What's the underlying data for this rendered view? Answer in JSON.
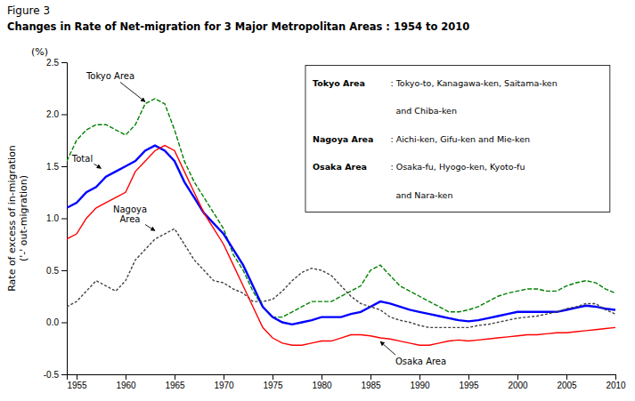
{
  "chart_data": {
    "type": "line",
    "title": "Figure 3",
    "subtitle": "Changes in Rate of Net-migration for 3 Major Metropolitan Areas : 1954 to 2010",
    "y_label": "Rate of excess of in-migration\n('-' out-migration)",
    "y_unit": "(%)",
    "x": [
      1954,
      1955,
      1956,
      1957,
      1958,
      1959,
      1960,
      1961,
      1962,
      1963,
      1964,
      1965,
      1966,
      1967,
      1968,
      1969,
      1970,
      1971,
      1972,
      1973,
      1974,
      1975,
      1976,
      1977,
      1978,
      1979,
      1980,
      1981,
      1982,
      1983,
      1984,
      1985,
      1986,
      1987,
      1988,
      1989,
      1990,
      1991,
      1992,
      1993,
      1994,
      1995,
      1996,
      1997,
      1998,
      1999,
      2000,
      2001,
      2002,
      2003,
      2004,
      2005,
      2006,
      2007,
      2008,
      2009,
      2010
    ],
    "xlim": [
      1954,
      2010
    ],
    "xticks": [
      1955,
      1960,
      1965,
      1970,
      1975,
      1980,
      1985,
      1990,
      1995,
      2000,
      2005,
      2010
    ],
    "ylim": [
      -0.5,
      2.5
    ],
    "yticks": [
      -0.5,
      {
        "value": 0.0,
        "label": "0.0"
      },
      0.5,
      {
        "value": 1.0,
        "label": "1.0"
      },
      1.5,
      {
        "value": 2.0,
        "label": "2.0"
      },
      2.5
    ],
    "series": [
      {
        "color": "#008000",
        "line_style": "dashed",
        "values": [
          1.55,
          1.75,
          1.85,
          1.9,
          1.9,
          1.85,
          1.8,
          1.9,
          2.1,
          2.15,
          2.1,
          1.85,
          1.55,
          1.35,
          1.2,
          1.05,
          0.9,
          0.65,
          0.5,
          0.3,
          0.15,
          0.05,
          0.05,
          0.1,
          0.15,
          0.2,
          0.2,
          0.2,
          0.25,
          0.3,
          0.35,
          0.5,
          0.55,
          0.45,
          0.35,
          0.3,
          0.25,
          0.2,
          0.15,
          0.1,
          0.1,
          0.12,
          0.15,
          0.2,
          0.25,
          0.28,
          0.3,
          0.32,
          0.32,
          0.3,
          0.3,
          0.35,
          0.38,
          0.4,
          0.38,
          0.32,
          0.28
        ]
      },
      {
        "color": "#0000FF",
        "line_style": "solid",
        "values": [
          1.1,
          1.15,
          1.25,
          1.3,
          1.4,
          1.45,
          1.5,
          1.55,
          1.65,
          1.7,
          1.65,
          1.55,
          1.35,
          1.2,
          1.05,
          0.95,
          0.85,
          0.7,
          0.55,
          0.35,
          0.15,
          0.05,
          0.0,
          -0.02,
          0.0,
          0.02,
          0.05,
          0.05,
          0.05,
          0.08,
          0.1,
          0.15,
          0.2,
          0.18,
          0.15,
          0.12,
          0.1,
          0.08,
          0.06,
          0.04,
          0.02,
          0.01,
          0.02,
          0.04,
          0.06,
          0.08,
          0.1,
          0.1,
          0.1,
          0.1,
          0.1,
          0.12,
          0.14,
          0.16,
          0.15,
          0.13,
          0.12
        ]
      },
      {
        "color": "#404040",
        "line_style": "dotted",
        "values": [
          0.15,
          0.2,
          0.3,
          0.4,
          0.35,
          0.3,
          0.4,
          0.6,
          0.7,
          0.8,
          0.85,
          0.9,
          0.75,
          0.6,
          0.5,
          0.4,
          0.38,
          0.32,
          0.28,
          0.2,
          0.2,
          0.22,
          0.3,
          0.4,
          0.48,
          0.52,
          0.5,
          0.45,
          0.35,
          0.25,
          0.18,
          0.15,
          0.12,
          0.05,
          0.02,
          0.0,
          -0.03,
          -0.05,
          -0.05,
          -0.05,
          -0.05,
          -0.05,
          -0.03,
          -0.02,
          0.0,
          0.02,
          0.04,
          0.05,
          0.06,
          0.08,
          0.1,
          0.13,
          0.15,
          0.18,
          0.18,
          0.12,
          0.08
        ]
      },
      {
        "color": "#FF0000",
        "line_style": "solid",
        "values": [
          0.8,
          0.85,
          1.0,
          1.1,
          1.15,
          1.2,
          1.25,
          1.45,
          1.55,
          1.65,
          1.7,
          1.65,
          1.45,
          1.25,
          1.05,
          0.9,
          0.75,
          0.55,
          0.35,
          0.15,
          -0.05,
          -0.15,
          -0.2,
          -0.22,
          -0.22,
          -0.2,
          -0.18,
          -0.18,
          -0.15,
          -0.12,
          -0.12,
          -0.13,
          -0.15,
          -0.16,
          -0.18,
          -0.2,
          -0.22,
          -0.22,
          -0.2,
          -0.18,
          -0.17,
          -0.18,
          -0.17,
          -0.16,
          -0.15,
          -0.14,
          -0.13,
          -0.12,
          -0.12,
          -0.11,
          -0.1,
          -0.1,
          -0.09,
          -0.08,
          -0.07,
          -0.06,
          -0.05
        ]
      }
    ],
    "annotations": [
      {
        "text": "Tokyo Area",
        "x": 1962,
        "y": 2.12
      },
      {
        "text": "Total",
        "x": 1957.5,
        "y": 1.48
      },
      {
        "text": "Nagoya\nArea",
        "x": 1963,
        "y": 0.88
      },
      {
        "text": "Osaka Area",
        "x": 1986,
        "y": -0.185
      }
    ],
    "notes": [
      {
        "label": "Tokyo Area",
        "text": [
          ": Tokyo-to, Kanagawa-ken, Saitama-ken",
          "  and Chiba-ken"
        ]
      },
      {
        "label": "Nagoya Area",
        "text": [
          ": Aichi-ken, Gifu-ken and Mie-ken"
        ]
      },
      {
        "label": "Osaka Area",
        "text": [
          ": Osaka-fu, Hyogo-ken, Kyoto-fu",
          "  and Nara-ken"
        ]
      }
    ]
  }
}
